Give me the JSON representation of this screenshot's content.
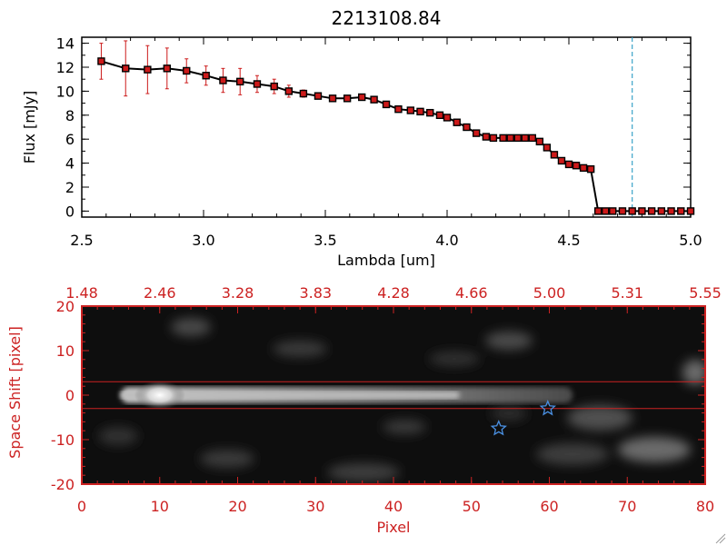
{
  "chart_data": [
    {
      "type": "line",
      "title": "2213108.84",
      "xlabel": "Lambda [um]",
      "ylabel": "Flux [mJy]",
      "xlim": [
        2.5,
        5.0
      ],
      "ylim": [
        -0.5,
        14.5
      ],
      "xticks": [
        "2.5",
        "3.0",
        "3.5",
        "4.0",
        "4.5",
        "5.0"
      ],
      "yticks": [
        "0",
        "2",
        "4",
        "6",
        "8",
        "10",
        "12",
        "14"
      ],
      "xtick_values": [
        2.5,
        3.0,
        3.5,
        4.0,
        4.5,
        5.0
      ],
      "ytick_values": [
        0,
        2,
        4,
        6,
        8,
        10,
        12,
        14
      ],
      "vline_x": 4.76,
      "hline_y": 0,
      "line_color": "#000000",
      "marker_color": "#cc1a1a",
      "errorbar_color": "#cc1a1a",
      "vline_color": "#3aa3c8",
      "series": [
        {
          "x": [
            2.58,
            2.68,
            2.77,
            2.85,
            2.93,
            3.01,
            3.08,
            3.15,
            3.22,
            3.29,
            3.35,
            3.41,
            3.47,
            3.53,
            3.59,
            3.65,
            3.7,
            3.75,
            3.8,
            3.85,
            3.89,
            3.93,
            3.97,
            4.0,
            4.04,
            4.08,
            4.12,
            4.16,
            4.19,
            4.23,
            4.26,
            4.29,
            4.32,
            4.35,
            4.38,
            4.41,
            4.44,
            4.47,
            4.5,
            4.53,
            4.56,
            4.59,
            4.62,
            4.65,
            4.68,
            4.72,
            4.76,
            4.8,
            4.84,
            4.88,
            4.92,
            4.96,
            5.0
          ],
          "y": [
            12.5,
            11.9,
            11.8,
            11.9,
            11.7,
            11.3,
            10.9,
            10.8,
            10.6,
            10.4,
            10.0,
            9.8,
            9.6,
            9.4,
            9.4,
            9.5,
            9.3,
            8.9,
            8.5,
            8.4,
            8.3,
            8.2,
            8.0,
            7.8,
            7.4,
            7.0,
            6.5,
            6.2,
            6.1,
            6.1,
            6.1,
            6.1,
            6.1,
            6.1,
            5.8,
            5.3,
            4.7,
            4.2,
            3.9,
            3.8,
            3.6,
            3.5,
            0.0,
            0.0,
            0.0,
            0.0,
            0.0,
            0.0,
            0.0,
            0.0,
            0.0,
            0.0,
            0.0
          ],
          "err": [
            1.5,
            2.3,
            2.0,
            1.7,
            1.0,
            0.8,
            1.0,
            1.1,
            0.7,
            0.6,
            0.5,
            0.3,
            0.2,
            0.2,
            0.2,
            0.2,
            0.2,
            0.2,
            0.2,
            0.2,
            0.2,
            0.2,
            0.2,
            0.2,
            0.2,
            0.2,
            0.2,
            0.2,
            0.2,
            0.2,
            0.2,
            0.2,
            0.2,
            0.2,
            0.2,
            0.2,
            0.2,
            0.2,
            0.2,
            0.2,
            0.2,
            0.2,
            0,
            0,
            0,
            0,
            0,
            0,
            0,
            0,
            0,
            0,
            0
          ]
        }
      ]
    },
    {
      "type": "heatmap",
      "xlabel": "Pixel",
      "ylabel": "Space Shift [pixel]",
      "xlim": [
        0,
        80
      ],
      "ylim": [
        -20,
        20
      ],
      "xticks": [
        "0",
        "10",
        "20",
        "30",
        "40",
        "50",
        "60",
        "70",
        "80"
      ],
      "xtick_values": [
        0,
        10,
        20,
        30,
        40,
        50,
        60,
        70,
        80
      ],
      "yticks": [
        "20",
        "10",
        "0",
        "-10",
        "-20"
      ],
      "ytick_values": [
        20,
        10,
        0,
        -10,
        -20
      ],
      "top_ticks": [
        "1.48",
        "2.46",
        "3.28",
        "3.83",
        "4.28",
        "4.66",
        "5.00",
        "5.31",
        "5.55"
      ],
      "axis_color": "#cc2222",
      "extraction_lines_y": [
        3,
        -3
      ],
      "trace": {
        "x_start": 5,
        "x_end": 63,
        "y": 0,
        "peak_x": 10
      },
      "markers": [
        {
          "shape": "star",
          "x": 59.8,
          "y": -3
        },
        {
          "shape": "star",
          "x": 53.5,
          "y": -7.5
        }
      ],
      "marker_color": "#4a90e2"
    }
  ]
}
